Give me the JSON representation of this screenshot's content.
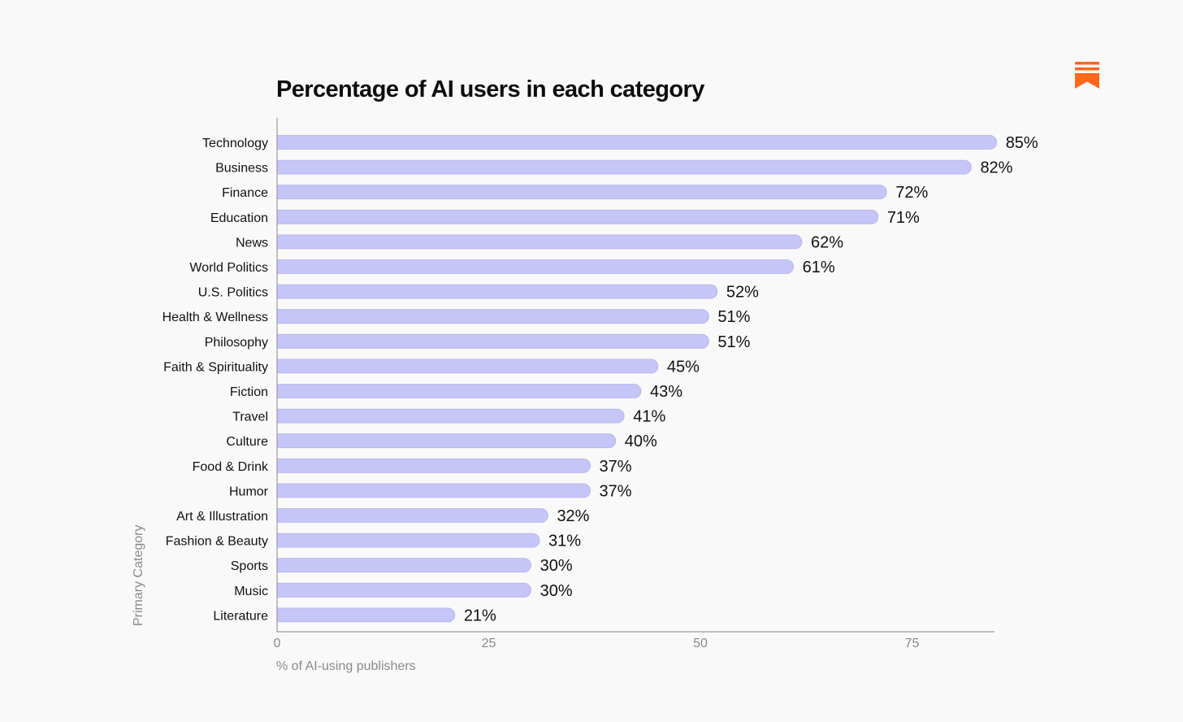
{
  "colors": {
    "background": "#f9f9f9",
    "bar": "#c5c5f7",
    "bar_edge": "#b3b3f0",
    "axis_line": "#9a9a9a",
    "brand_orange": "#ff6719"
  },
  "logo": {
    "icon": "substack-bookmark-icon"
  },
  "chart_data": {
    "type": "bar",
    "orientation": "horizontal",
    "title": "Percentage of AI users in each category",
    "xlabel": "% of AI-using publishers",
    "ylabel": "Primary Category",
    "xlim": [
      0,
      85
    ],
    "xticks": [
      0,
      25,
      50,
      75
    ],
    "value_suffix": "%",
    "grid": false,
    "categories": [
      "Technology",
      "Business",
      "Finance",
      "Education",
      "News",
      "World Politics",
      "U.S. Politics",
      "Health & Wellness",
      "Philosophy",
      "Faith & Spirituality",
      "Fiction",
      "Travel",
      "Culture",
      "Food & Drink",
      "Humor",
      "Art & Illustration",
      "Fashion & Beauty",
      "Sports",
      "Music",
      "Literature"
    ],
    "values": [
      85,
      82,
      72,
      71,
      62,
      61,
      52,
      51,
      51,
      45,
      43,
      41,
      40,
      37,
      37,
      32,
      31,
      30,
      30,
      21
    ],
    "value_labels": [
      "85%",
      "82%",
      "72%",
      "71%",
      "62%",
      "61%",
      "52%",
      "51%",
      "51%",
      "45%",
      "43%",
      "41%",
      "40%",
      "37%",
      "37%",
      "32%",
      "31%",
      "30%",
      "30%",
      "21%"
    ]
  }
}
